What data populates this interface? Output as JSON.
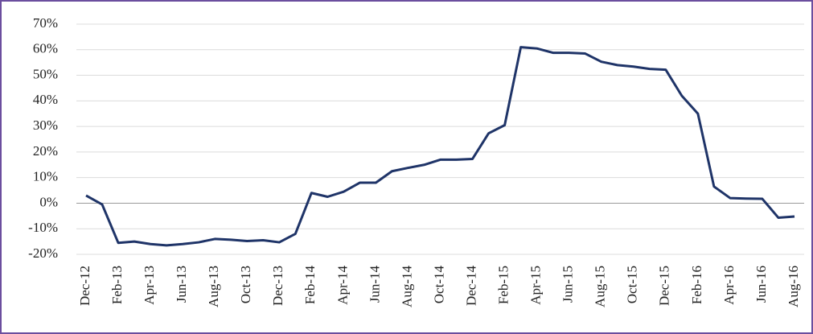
{
  "chart_data": {
    "type": "line",
    "categories": [
      "Dec-12",
      null,
      "Feb-13",
      null,
      "Apr-13",
      null,
      "Jun-13",
      null,
      "Aug-13",
      null,
      "Oct-13",
      null,
      "Dec-13",
      null,
      "Feb-14",
      null,
      "Apr-14",
      null,
      "Jun-14",
      null,
      "Aug-14",
      null,
      "Oct-14",
      null,
      "Dec-14",
      null,
      "Feb-15",
      null,
      "Apr-15",
      null,
      "Jun-15",
      null,
      "Aug-15",
      null,
      "Oct-15",
      null,
      "Dec-15",
      null,
      "Feb-16",
      null,
      "Apr-16",
      null,
      "Jun-16",
      null,
      "Aug-16"
    ],
    "series": [
      {
        "color": "#1f3468",
        "values": [
          3,
          -0.5,
          -15.5,
          -15,
          -16,
          -16.5,
          -16,
          -15.3,
          -14,
          -14.3,
          -14.8,
          -14.5,
          -15.3,
          -12,
          4,
          2.5,
          4.5,
          8,
          8,
          12.5,
          13.8,
          15,
          17,
          17,
          17.3,
          27.3,
          30.5,
          61,
          60.5,
          58.8,
          58.8,
          58.5,
          55.3,
          54,
          53.4,
          52.5,
          52.2,
          42,
          35,
          6.5,
          2,
          1.8,
          1.7,
          -5.7,
          -5.2
        ]
      }
    ],
    "ylim": [
      -20,
      70
    ],
    "yticks": [
      {
        "value": -20,
        "label": "-20%"
      },
      {
        "value": -10,
        "label": "-10%"
      },
      {
        "value": 0,
        "label": "0%"
      },
      {
        "value": 10,
        "label": "10%"
      },
      {
        "value": 20,
        "label": "20%"
      },
      {
        "value": 30,
        "label": "30%"
      },
      {
        "value": 40,
        "label": "40%"
      },
      {
        "value": 50,
        "label": "50%"
      },
      {
        "value": 60,
        "label": "60%"
      },
      {
        "value": 70,
        "label": "70%"
      }
    ],
    "grid": true
  }
}
